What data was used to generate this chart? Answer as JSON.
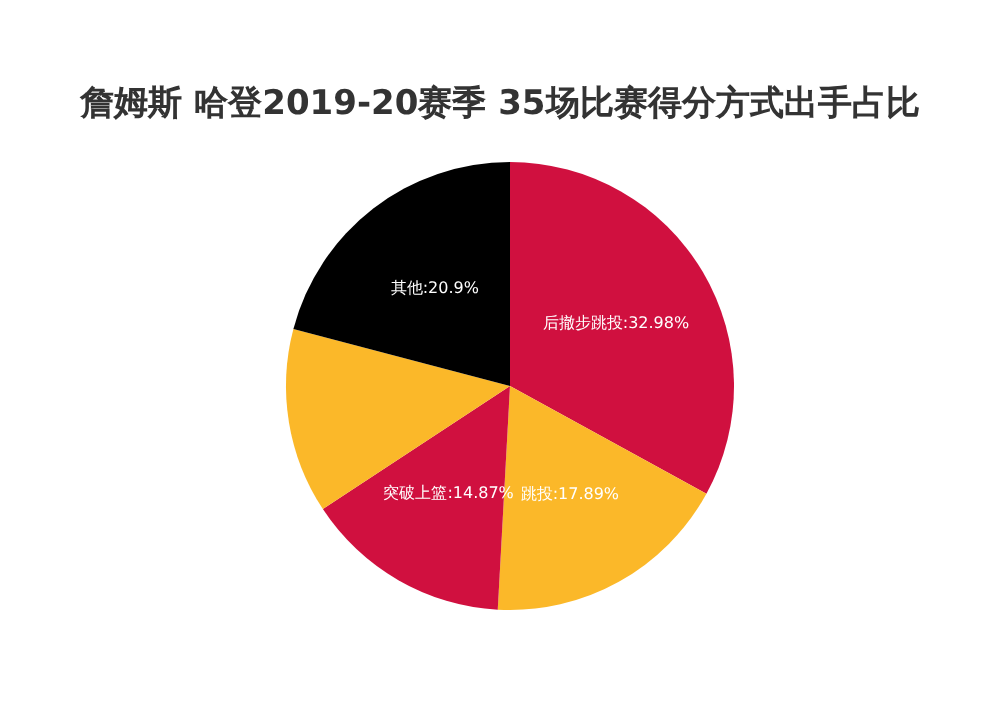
{
  "chart_data": {
    "type": "pie",
    "title": "詹姆斯 哈登2019-20赛季 35场比赛得分方式出手占比",
    "categories": [
      "后撤步跳投",
      "跳投",
      "突破上篮",
      null,
      "其他"
    ],
    "values": [
      32.98,
      17.89,
      14.87,
      13.36,
      20.9
    ],
    "colors": [
      "#d0103f",
      "#fbb829",
      "#d0103f",
      "#fbb829",
      "#000000"
    ],
    "value_labels": [
      "32.98%",
      "17.89%",
      "14.87%",
      null,
      "20.9%"
    ],
    "legend": false
  }
}
